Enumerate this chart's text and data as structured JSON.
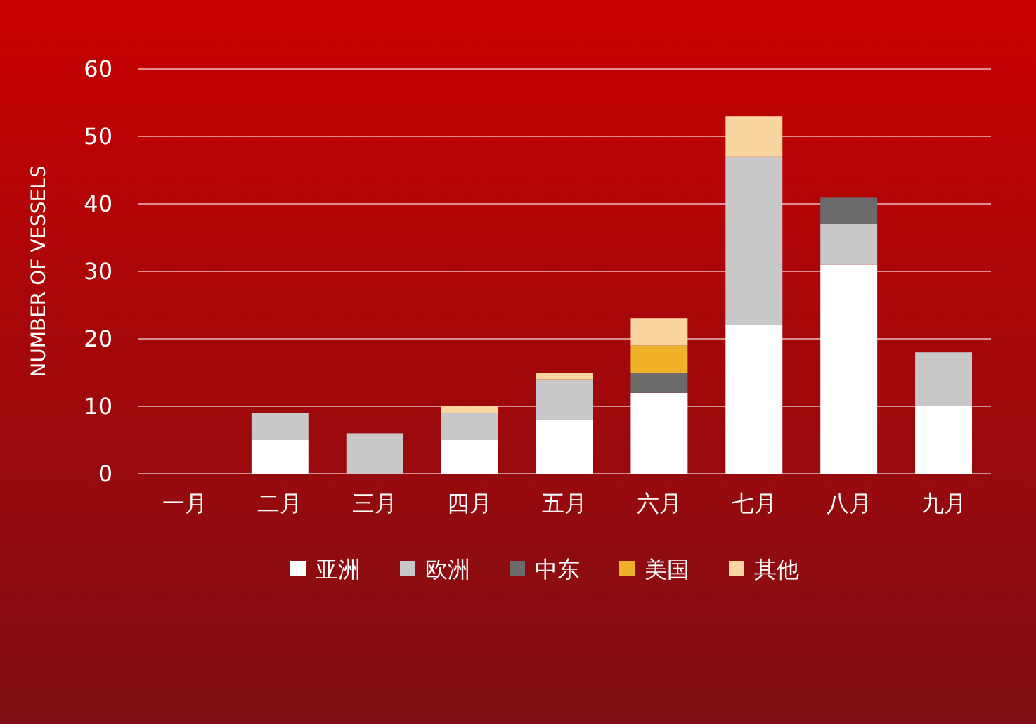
{
  "chart_data": {
    "type": "bar",
    "stacked": true,
    "ylabel": "NUMBER OF VESSELS",
    "categories": [
      "一月",
      "二月",
      "三月",
      "四月",
      "五月",
      "六月",
      "七月",
      "八月",
      "九月"
    ],
    "series": [
      {
        "name": "亚洲",
        "color": "#ffffff",
        "values": [
          0,
          5,
          0,
          5,
          8,
          12,
          22,
          31,
          10
        ]
      },
      {
        "name": "欧洲",
        "color": "#c8c8c8",
        "values": [
          0,
          4,
          6,
          4,
          6,
          0,
          25,
          6,
          8
        ]
      },
      {
        "name": "中东",
        "color": "#6b6b6b",
        "values": [
          0,
          0,
          0,
          0,
          0,
          3,
          0,
          4,
          0
        ]
      },
      {
        "name": "美国",
        "color": "#f0b12a",
        "values": [
          0,
          0,
          0,
          0,
          0,
          4,
          0,
          0,
          0
        ]
      },
      {
        "name": "其他",
        "color": "#f9d5a0",
        "values": [
          0,
          0,
          0,
          1,
          1,
          4,
          6,
          0,
          0
        ]
      }
    ],
    "ylim": [
      0,
      60
    ],
    "yticks": [
      0,
      10,
      20,
      30,
      40,
      50,
      60
    ],
    "grid": "y",
    "legend": "bottom"
  }
}
